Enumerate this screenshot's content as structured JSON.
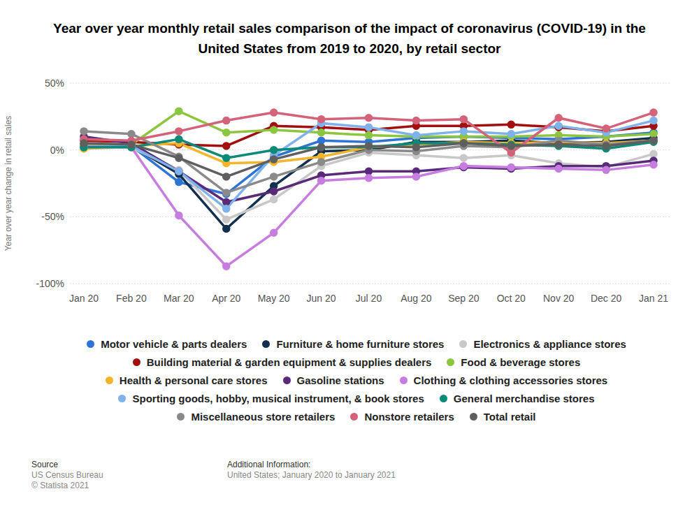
{
  "chart_data": {
    "type": "line",
    "title": "Year over year monthly retail sales comparison of the impact of coronavirus (COVID-19) in the United States from 2019 to 2020, by retail sector",
    "y_label": "Year over year change in retail sales",
    "categories": [
      "Jan 20",
      "Feb 20",
      "Mar 20",
      "Apr 20",
      "May 20",
      "Jun 20",
      "Jul 20",
      "Aug 20",
      "Sep 20",
      "Oct 20",
      "Nov 20",
      "Dec 20",
      "Jan 21"
    ],
    "series": [
      {
        "name": "Motor vehicle & parts dealers",
        "color": "#2e74d6",
        "values": [
          2,
          3,
          -24,
          -33,
          -5,
          7,
          6,
          9,
          10,
          9,
          8,
          10,
          13
        ]
      },
      {
        "name": "Furniture & home furniture stores",
        "color": "#132f4f",
        "values": [
          4,
          3,
          -18,
          -59,
          -27,
          -1,
          0,
          6,
          6,
          7,
          5,
          6,
          9
        ]
      },
      {
        "name": "Electronics & appliance stores",
        "color": "#c8c8c8",
        "values": [
          1,
          2,
          -15,
          -52,
          -37,
          -12,
          -2,
          -4,
          -6,
          -4,
          -10,
          -13,
          -3
        ]
      },
      {
        "name": "Building material & garden equipment & supplies dealers",
        "color": "#a30f0f",
        "values": [
          7,
          6,
          4,
          3,
          18,
          17,
          15,
          18,
          18,
          19,
          17,
          14,
          18
        ]
      },
      {
        "name": "Food & beverage stores",
        "color": "#8cc63f",
        "values": [
          3,
          4,
          29,
          13,
          15,
          13,
          11,
          10,
          10,
          10,
          11,
          10,
          12
        ]
      },
      {
        "name": "Health & personal care stores",
        "color": "#f2b52b",
        "values": [
          1,
          3,
          5,
          -10,
          -9,
          -5,
          2,
          4,
          6,
          5,
          6,
          5,
          7
        ]
      },
      {
        "name": "Gasoline stations",
        "color": "#5a2a7a",
        "values": [
          10,
          5,
          -16,
          -39,
          -31,
          -19,
          -16,
          -16,
          -13,
          -14,
          -12,
          -12,
          -8
        ]
      },
      {
        "name": "Clothing & clothing accessories stores",
        "color": "#c77de0",
        "values": [
          3,
          2,
          -49,
          -87,
          -62,
          -23,
          -21,
          -20,
          -12,
          -13,
          -14,
          -15,
          -11
        ]
      },
      {
        "name": "Sporting goods, hobby, musical instrument, & book stores",
        "color": "#7fb2ea",
        "values": [
          2,
          3,
          -16,
          -44,
          -4,
          20,
          17,
          11,
          14,
          12,
          18,
          13,
          22
        ]
      },
      {
        "name": "General merchandise stores",
        "color": "#0b8a78",
        "values": [
          2,
          2,
          8,
          -6,
          0,
          2,
          2,
          5,
          5,
          4,
          3,
          1,
          6
        ]
      },
      {
        "name": "Miscellaneous store retailers",
        "color": "#8a8a8a",
        "values": [
          14,
          12,
          -5,
          -32,
          -20,
          -9,
          0,
          -1,
          3,
          2,
          7,
          4,
          7
        ]
      },
      {
        "name": "Nonstore retailers",
        "color": "#d4637a",
        "values": [
          8,
          7,
          14,
          22,
          28,
          23,
          24,
          22,
          23,
          -2,
          24,
          16,
          28
        ]
      },
      {
        "name": "Total retail",
        "color": "#5f5f5f",
        "values": [
          5,
          4,
          -6,
          -20,
          -7,
          2,
          3,
          2,
          5,
          3,
          4,
          3,
          7
        ]
      }
    ],
    "ylim": [
      -100,
      50
    ],
    "yticks": [
      {
        "value": -100,
        "label": "-100%"
      },
      {
        "value": -50,
        "label": "-50%"
      },
      {
        "value": 0,
        "label": "0%"
      },
      {
        "value": 50,
        "label": "50%"
      }
    ],
    "grid": true,
    "legend": "bottom",
    "marker": "circle",
    "source_title": "Source",
    "source_lines": [
      "US Census Bureau",
      "© Statista 2021"
    ],
    "info_title": "Additional Information:",
    "info_lines": [
      "United States; January 2020 to January 2021"
    ]
  }
}
